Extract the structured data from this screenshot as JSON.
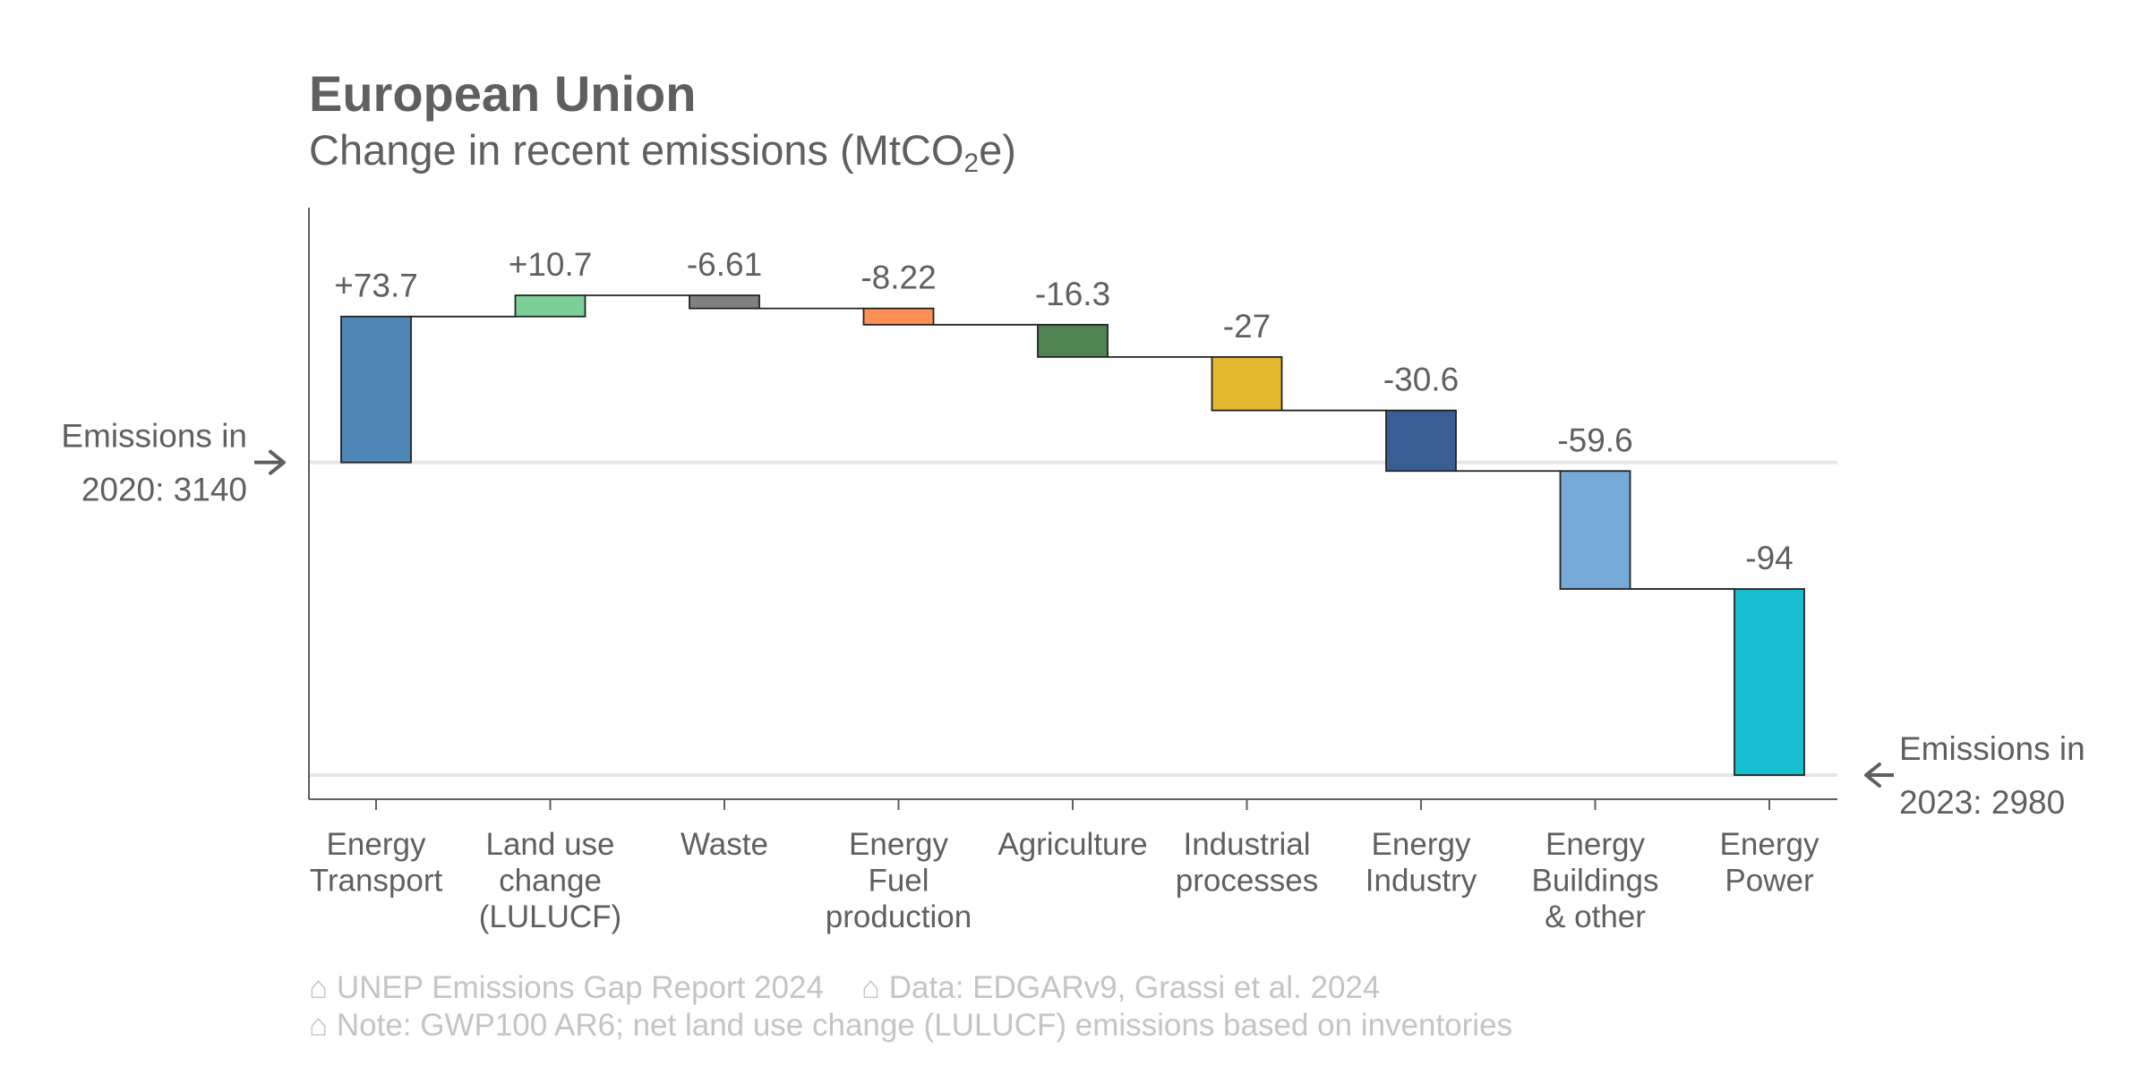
{
  "title": "European Union",
  "subtitle_main": "Change in recent emissions (MtCO",
  "subtitle_sub": "2",
  "subtitle_end": "e)",
  "chart_data": {
    "type": "waterfall",
    "title": "European Union",
    "subtitle": "Change in recent emissions (MtCO2e)",
    "start": {
      "label_lines": [
        "Emissions in",
        "2020: 3140"
      ],
      "value": 3140
    },
    "end": {
      "label_lines": [
        "Emissions in",
        "2023: 2980"
      ],
      "value": 2980
    },
    "categories": [
      {
        "label_lines": [
          "Energy",
          "Transport"
        ],
        "value": 73.7,
        "display": "+73.7",
        "color": "#4f86b8"
      },
      {
        "label_lines": [
          "Land use",
          "change",
          "(LULUCF)"
        ],
        "value": 10.7,
        "display": "+10.7",
        "color": "#7ccf96"
      },
      {
        "label_lines": [
          "Waste"
        ],
        "value": -6.61,
        "display": "-6.61",
        "color": "#808080"
      },
      {
        "label_lines": [
          "Energy",
          "Fuel",
          "production"
        ],
        "value": -8.22,
        "display": "-8.22",
        "color": "#ff9055"
      },
      {
        "label_lines": [
          "Agriculture"
        ],
        "value": -16.3,
        "display": "-16.3",
        "color": "#4f8452"
      },
      {
        "label_lines": [
          "Industrial",
          "processes"
        ],
        "value": -27,
        "display": "-27",
        "color": "#e2b72d"
      },
      {
        "label_lines": [
          "Energy",
          "Industry"
        ],
        "value": -30.6,
        "display": "-30.6",
        "color": "#3a5e93"
      },
      {
        "label_lines": [
          "Energy",
          "Buildings",
          "& other"
        ],
        "value": -59.6,
        "display": "-59.6",
        "color": "#74a9d8"
      },
      {
        "label_lines": [
          "Energy",
          "Power"
        ],
        "value": -94,
        "display": "-94",
        "color": "#17becf"
      }
    ],
    "grid": false
  },
  "footer": {
    "source": "⌂ UNEP Emissions Gap Report 2024",
    "data": "⌂ Data: EDGARv9, Grassi et al. 2024",
    "note": "⌂ Note: GWP100 AR6; net land use change (LULUCF) emissions based on inventories"
  },
  "colors": {
    "text": "#5f5f5f",
    "axis": "#5f5f5f",
    "reference_line": "#e6e6e6",
    "footer": "#c4c4c4"
  }
}
